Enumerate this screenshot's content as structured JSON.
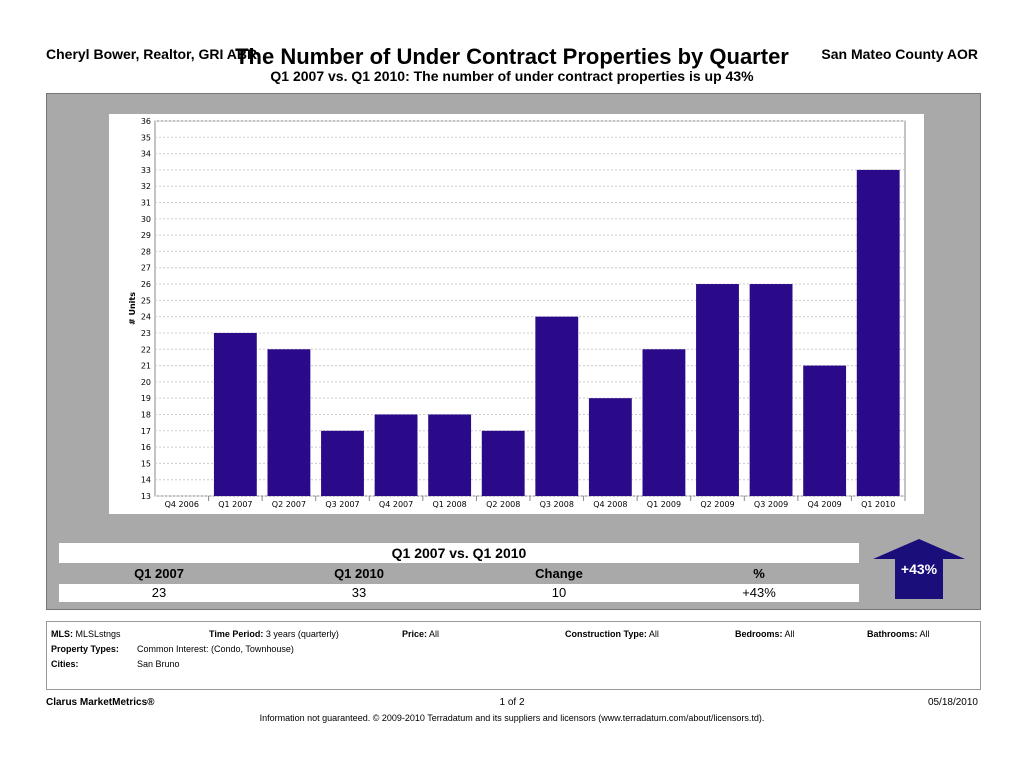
{
  "header": {
    "agent": "Cheryl Bower, Realtor, GRI ABR",
    "title": "The Number of Under Contract Properties by Quarter",
    "subtitle": "Q1 2007 vs. Q1 2010:  The number of under contract properties is up 43%",
    "association": "San Mateo County AOR"
  },
  "chart_data": {
    "type": "bar",
    "categories": [
      "Q4 2006",
      "Q1 2007",
      "Q2 2007",
      "Q3 2007",
      "Q4 2007",
      "Q1 2008",
      "Q2 2008",
      "Q3 2008",
      "Q4 2008",
      "Q1 2009",
      "Q2 2009",
      "Q3 2009",
      "Q4 2009",
      "Q1 2010"
    ],
    "values": [
      null,
      23,
      22,
      17,
      18,
      18,
      17,
      24,
      19,
      22,
      26,
      26,
      21,
      33
    ],
    "ylabel": "# Units",
    "ylim": [
      13,
      36
    ],
    "yticks": [
      13,
      14,
      15,
      16,
      17,
      18,
      19,
      20,
      21,
      22,
      23,
      24,
      25,
      26,
      27,
      28,
      29,
      30,
      31,
      32,
      33,
      34,
      35,
      36
    ],
    "grid": true,
    "bar_color": "#2b0a8a"
  },
  "summary": {
    "title": "Q1 2007 vs. Q1 2010",
    "headers": [
      "Q1 2007",
      "Q1 2010",
      "Change",
      "%"
    ],
    "values": [
      "23",
      "33",
      "10",
      "+43%"
    ],
    "badge": "+43%",
    "badge_color": "#1a0f7a"
  },
  "criteria": {
    "mls_label": "MLS:",
    "mls_value": "MLSLstngs",
    "period_label": "Time Period:",
    "period_value": "3 years (quarterly)",
    "price_label": "Price:",
    "price_value": "All",
    "construction_label": "Construction Type:",
    "construction_value": "All",
    "bedrooms_label": "Bedrooms:",
    "bedrooms_value": "All",
    "bathrooms_label": "Bathrooms:",
    "bathrooms_value": "All",
    "property_label": "Property Types:",
    "property_value": "Common Interest: (Condo, Townhouse)",
    "cities_label": "Cities:",
    "cities_value": "San Bruno"
  },
  "footer": {
    "brand": "Clarus MarketMetrics®",
    "page": "1 of 2",
    "date": "05/18/2010",
    "disclaimer": "Information not guaranteed.  © 2009-2010 Terradatum and its suppliers and licensors (www.terradatum.com/about/licensors.td)."
  }
}
